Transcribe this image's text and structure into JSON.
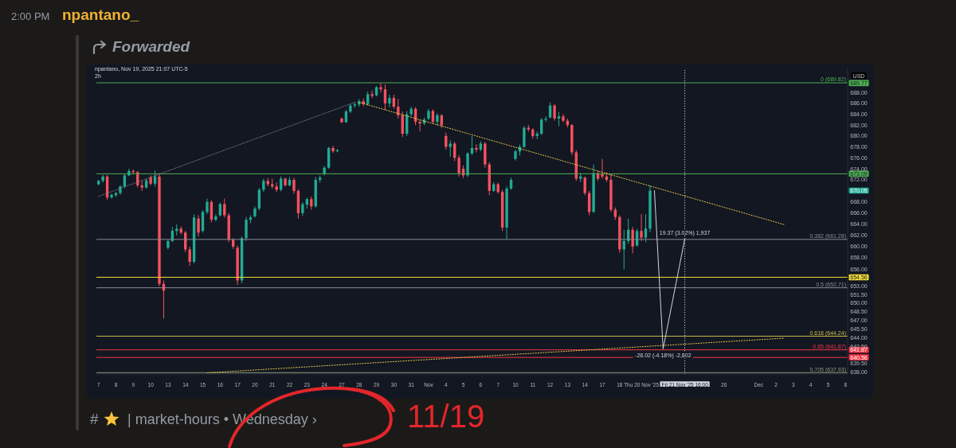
{
  "chart_data": {
    "type": "candlestick",
    "title": "2h",
    "subtitle": "npantano, Nov 19, 2025 21:07 UTC-5",
    "ylabel": "USD",
    "log": true,
    "categories": [
      "7",
      null,
      null,
      null,
      "8",
      null,
      null,
      null,
      "9",
      null,
      null,
      null,
      "10",
      null,
      null,
      null,
      "13",
      null,
      null,
      null,
      "14",
      null,
      null,
      null,
      "15",
      null,
      null,
      null,
      "16",
      null,
      null,
      null,
      "17",
      null,
      null,
      null,
      "20",
      null,
      null,
      null,
      "21",
      null,
      null,
      null,
      "22",
      null,
      null,
      null,
      "23",
      null,
      null,
      null,
      "24",
      null,
      null,
      null,
      "27",
      null,
      null,
      null,
      "28",
      null,
      null,
      null,
      "29",
      null,
      null,
      null,
      "30",
      null,
      null,
      null,
      "31",
      null,
      null,
      null,
      "Nov",
      null,
      null,
      null,
      "4",
      null,
      null,
      null,
      "5",
      null,
      null,
      null,
      "6",
      null,
      null,
      null,
      "7",
      null,
      null,
      null,
      "10",
      null,
      null,
      null,
      "11",
      null,
      null,
      null,
      "12",
      null,
      null,
      null,
      "13",
      null,
      null,
      null,
      "14",
      null,
      null,
      null,
      "17",
      null,
      null,
      null,
      "18",
      null,
      null,
      null,
      null,
      "Thu 20 Nov '25",
      null,
      null,
      null,
      null,
      null,
      null,
      null,
      null,
      null,
      "Fri 21 Nov '25 16:00",
      null,
      null,
      null,
      null,
      null,
      null,
      null,
      null,
      "26",
      null,
      null,
      null,
      null,
      null,
      null,
      null,
      "Dec",
      null,
      null,
      null,
      "2",
      null,
      null,
      null,
      "3",
      null,
      null,
      null,
      "4",
      null,
      null,
      null,
      "5",
      null,
      null,
      null,
      "8"
    ],
    "ohlc": [
      [
        671.2,
        672.0,
        671.0,
        671.8
      ],
      [
        671.8,
        672.9,
        671.5,
        672.6
      ],
      [
        672.6,
        672.9,
        668.4,
        668.8
      ],
      [
        668.8,
        669.5,
        668.6,
        669.3
      ],
      [
        669.2,
        669.8,
        668.9,
        669.6
      ],
      [
        669.6,
        671.0,
        669.3,
        670.8
      ],
      [
        670.8,
        673.0,
        670.5,
        672.8
      ],
      [
        672.8,
        674.0,
        672.7,
        673.6
      ],
      [
        673.6,
        673.9,
        673.0,
        673.4
      ],
      [
        673.4,
        673.6,
        670.6,
        671.0
      ],
      [
        671.0,
        671.8,
        670.0,
        670.6
      ],
      [
        670.6,
        672.2,
        670.4,
        671.9
      ],
      [
        672.4,
        672.8,
        671.0,
        671.3
      ],
      [
        671.3,
        673.7,
        670.8,
        672.6
      ],
      [
        672.6,
        673.2,
        653.0,
        653.4
      ],
      [
        653.4,
        654.0,
        647.3,
        652.2
      ],
      [
        659.8,
        661.2,
        659.5,
        661.0
      ],
      [
        661.0,
        663.5,
        660.8,
        662.8
      ],
      [
        662.8,
        664.0,
        662.0,
        663.2
      ],
      [
        663.2,
        663.6,
        662.2,
        662.5
      ],
      [
        662.5,
        662.8,
        659.0,
        659.5
      ],
      [
        659.5,
        660.0,
        656.6,
        657.3
      ],
      [
        657.3,
        665.8,
        657.0,
        665.2
      ],
      [
        665.0,
        665.6,
        661.8,
        662.5
      ],
      [
        662.8,
        666.5,
        662.5,
        666.2
      ],
      [
        666.2,
        668.6,
        665.8,
        668.0
      ],
      [
        668.0,
        668.3,
        664.3,
        664.8
      ],
      [
        664.8,
        665.8,
        664.5,
        665.4
      ],
      [
        665.6,
        667.9,
        665.4,
        667.6
      ],
      [
        667.6,
        668.6,
        665.2,
        665.6
      ],
      [
        665.6,
        666.0,
        660.8,
        661.2
      ],
      [
        661.2,
        661.5,
        659.6,
        660.0
      ],
      [
        659.8,
        660.2,
        653.2,
        654.0
      ],
      [
        654.0,
        661.8,
        653.5,
        661.5
      ],
      [
        661.5,
        665.3,
        661.0,
        664.8
      ],
      [
        664.8,
        665.6,
        664.2,
        665.2
      ],
      [
        665.4,
        667.2,
        665.2,
        666.8
      ],
      [
        666.8,
        670.5,
        666.5,
        670.2
      ],
      [
        670.2,
        672.2,
        669.8,
        671.8
      ],
      [
        671.8,
        672.3,
        670.8,
        671.2
      ],
      [
        671.2,
        672.2,
        670.4,
        670.8
      ],
      [
        670.8,
        671.5,
        669.8,
        670.2
      ],
      [
        670.2,
        672.6,
        669.9,
        672.2
      ],
      [
        672.2,
        672.4,
        670.8,
        671.0
      ],
      [
        671.0,
        672.5,
        670.8,
        672.0
      ],
      [
        672.0,
        672.4,
        669.5,
        670.0
      ],
      [
        670.0,
        670.3,
        665.0,
        666.0
      ],
      [
        666.0,
        668.0,
        665.5,
        667.6
      ],
      [
        667.5,
        668.8,
        666.8,
        668.5
      ],
      [
        668.5,
        669.0,
        666.6,
        667.2
      ],
      [
        667.2,
        672.5,
        667.0,
        672.0
      ],
      [
        672.0,
        672.8,
        671.5,
        672.4
      ],
      [
        673.0,
        674.5,
        672.8,
        674.2
      ],
      [
        674.2,
        678.0,
        674.0,
        677.8
      ],
      [
        677.8,
        678.2,
        676.9,
        677.2
      ],
      [
        677.2,
        677.6,
        677.0,
        677.4
      ],
      [
        683.2,
        683.4,
        682.4,
        682.5
      ],
      [
        682.5,
        684.8,
        682.4,
        684.5
      ],
      [
        684.5,
        686.0,
        684.2,
        685.6
      ],
      [
        685.6,
        686.3,
        685.2,
        685.8
      ],
      [
        685.8,
        686.8,
        685.4,
        686.4
      ],
      [
        686.4,
        686.9,
        685.5,
        685.9
      ],
      [
        685.9,
        688.2,
        685.6,
        687.7
      ],
      [
        687.7,
        688.4,
        687.0,
        687.4
      ],
      [
        687.5,
        689.2,
        687.3,
        689.0
      ],
      [
        689.0,
        689.7,
        688.0,
        688.6
      ],
      [
        688.6,
        689.5,
        684.8,
        686.0
      ],
      [
        686.0,
        687.6,
        685.3,
        687.0
      ],
      [
        687.0,
        687.6,
        685.0,
        685.4
      ],
      [
        685.4,
        686.8,
        683.2,
        683.8
      ],
      [
        683.8,
        684.5,
        679.8,
        680.4
      ],
      [
        680.4,
        684.6,
        680.0,
        684.0
      ],
      [
        684.0,
        685.4,
        683.6,
        685.0
      ],
      [
        685.0,
        685.3,
        682.0,
        682.6
      ],
      [
        682.6,
        683.0,
        680.8,
        682.3
      ],
      [
        682.3,
        683.4,
        682.0,
        683.0
      ],
      [
        683.2,
        685.0,
        682.9,
        684.6
      ],
      [
        684.6,
        684.9,
        682.2,
        682.6
      ],
      [
        682.6,
        684.2,
        682.0,
        683.8
      ],
      [
        683.8,
        684.0,
        681.5,
        682.0
      ],
      [
        680.0,
        680.6,
        677.5,
        678.0
      ],
      [
        678.0,
        679.2,
        676.2,
        678.6
      ],
      [
        678.6,
        678.9,
        675.4,
        676.0
      ],
      [
        676.0,
        676.5,
        672.6,
        673.2
      ],
      [
        674.0,
        674.6,
        672.3,
        672.8
      ],
      [
        672.8,
        677.0,
        672.5,
        676.8
      ],
      [
        676.8,
        680.0,
        676.5,
        677.8
      ],
      [
        677.8,
        678.5,
        677.0,
        677.5
      ],
      [
        677.5,
        679.0,
        677.2,
        678.6
      ],
      [
        678.6,
        678.9,
        674.2,
        674.8
      ],
      [
        674.8,
        675.2,
        669.2,
        670.0
      ],
      [
        670.0,
        671.6,
        669.8,
        671.2
      ],
      [
        671.2,
        671.5,
        669.5,
        669.8
      ],
      [
        669.8,
        670.2,
        662.8,
        663.4
      ],
      [
        663.4,
        670.8,
        661.3,
        670.4
      ],
      [
        670.4,
        672.4,
        670.2,
        672.0
      ],
      [
        675.8,
        677.5,
        675.5,
        677.2
      ],
      [
        677.2,
        678.4,
        676.4,
        678.0
      ],
      [
        678.0,
        681.8,
        677.8,
        681.5
      ],
      [
        681.5,
        682.0,
        680.8,
        681.2
      ],
      [
        681.2,
        681.4,
        679.5,
        680.0
      ],
      [
        680.0,
        680.8,
        679.4,
        680.4
      ],
      [
        680.4,
        683.3,
        680.2,
        683.0
      ],
      [
        683.0,
        683.6,
        682.6,
        683.2
      ],
      [
        683.4,
        686.2,
        683.2,
        685.6
      ],
      [
        685.6,
        685.9,
        682.8,
        683.2
      ],
      [
        683.2,
        684.4,
        681.8,
        683.6
      ],
      [
        683.6,
        684.0,
        682.5,
        682.8
      ],
      [
        682.8,
        683.2,
        681.6,
        682.0
      ],
      [
        682.0,
        682.2,
        676.5,
        677.0
      ],
      [
        677.0,
        677.4,
        671.8,
        672.2
      ],
      [
        672.2,
        673.2,
        671.6,
        672.6
      ],
      [
        672.4,
        672.6,
        669.2,
        669.6
      ],
      [
        669.6,
        670.0,
        665.6,
        666.2
      ],
      [
        666.2,
        674.8,
        666.0,
        673.2
      ],
      [
        673.2,
        673.6,
        671.8,
        672.2
      ],
      [
        673.0,
        675.8,
        672.2,
        672.6
      ],
      [
        672.6,
        673.4,
        671.6,
        672.0
      ],
      [
        672.0,
        673.0,
        666.2,
        666.6
      ],
      [
        666.6,
        667.0,
        664.8,
        665.3
      ],
      [
        665.3,
        665.6,
        658.9,
        659.5
      ],
      [
        659.5,
        663.0,
        656.0,
        661.0
      ],
      [
        661.0,
        665.0,
        660.5,
        663.0
      ],
      [
        663.0,
        663.5,
        658.8,
        660.0
      ],
      [
        660.2,
        663.2,
        660.0,
        662.8
      ],
      [
        662.8,
        665.8,
        661.0,
        661.6
      ],
      [
        661.6,
        665.8,
        660.8,
        663.2
      ],
      [
        663.2,
        671.0,
        662.6,
        670.05
      ],
      null,
      null,
      null,
      null,
      null,
      null,
      null,
      null,
      null,
      null,
      null,
      null,
      null,
      null,
      null,
      null,
      null,
      null,
      null,
      null,
      null,
      null,
      null,
      null,
      null,
      null,
      null,
      null,
      null,
      null,
      null,
      null,
      null,
      null,
      null,
      null,
      null,
      null,
      null,
      null,
      null,
      null,
      null,
      null,
      null
    ],
    "colors": [
      "#22ab94",
      "#22ab94",
      "#f7525f",
      "#22ab94",
      "#22ab94",
      "#22ab94",
      "#22ab94",
      "#22ab94",
      "#f7525f",
      "#f7525f",
      "#f7525f",
      "#22ab94",
      "#f7525f",
      "#22ab94",
      "#f7525f",
      "#f7525f",
      "#22ab94",
      "#22ab94",
      "#22ab94",
      "#f7525f",
      "#f7525f",
      "#f7525f",
      "#22ab94",
      "#f7525f",
      "#22ab94",
      "#22ab94",
      "#f7525f",
      "#22ab94",
      "#22ab94",
      "#f7525f",
      "#f7525f",
      "#f7525f",
      "#f7525f",
      "#22ab94",
      "#22ab94",
      "#22ab94",
      "#22ab94",
      "#22ab94",
      "#22ab94",
      "#f7525f",
      "#f7525f",
      "#f7525f",
      "#22ab94",
      "#f7525f",
      "#22ab94",
      "#f7525f",
      "#f7525f",
      "#22ab94",
      "#22ab94",
      "#f7525f",
      "#22ab94",
      "#22ab94",
      "#22ab94",
      "#22ab94",
      "#f7525f",
      "#22ab94",
      "#f7525f",
      "#22ab94",
      "#22ab94",
      "#22ab94",
      "#22ab94",
      "#f7525f",
      "#22ab94",
      "#f7525f",
      "#22ab94",
      "#f7525f",
      "#f7525f",
      "#22ab94",
      "#f7525f",
      "#f7525f",
      "#f7525f",
      "#22ab94",
      "#22ab94",
      "#f7525f",
      "#f7525f",
      "#22ab94",
      "#22ab94",
      "#f7525f",
      "#22ab94",
      "#f7525f",
      "#f7525f",
      "#22ab94",
      "#f7525f",
      "#f7525f",
      "#f7525f",
      "#22ab94",
      "#22ab94",
      "#f7525f",
      "#22ab94",
      "#f7525f",
      "#f7525f",
      "#22ab94",
      "#f7525f",
      "#f7525f",
      "#22ab94",
      "#22ab94",
      "#22ab94",
      "#22ab94",
      "#22ab94",
      "#f7525f",
      "#f7525f",
      "#22ab94",
      "#22ab94",
      "#22ab94",
      "#22ab94",
      "#f7525f",
      "#22ab94",
      "#f7525f",
      "#f7525f",
      "#f7525f",
      "#f7525f",
      "#22ab94",
      "#f7525f",
      "#f7525f",
      "#22ab94",
      "#f7525f",
      "#f7525f",
      "#f7525f",
      "#f7525f",
      "#f7525f",
      "#f7525f",
      "#22ab94",
      "#22ab94",
      "#f7525f",
      "#22ab94",
      "#f7525f",
      "#22ab94",
      "#22ab94",
      null,
      null,
      null,
      null,
      null,
      null,
      null,
      null,
      null,
      null,
      null,
      null,
      null,
      null,
      null,
      null,
      null,
      null,
      null,
      null,
      null,
      null,
      null,
      null,
      null,
      null,
      null,
      null,
      null,
      null,
      null,
      null,
      null,
      null,
      null,
      null,
      null,
      null,
      null,
      null,
      null,
      null,
      null,
      null,
      null
    ],
    "series": [
      {
        "type": "line",
        "color": "#787b86",
        "line_style": "dotted",
        "values": [
          669.0,
          null,
          null,
          null,
          null,
          null,
          null,
          null,
          null,
          null,
          null,
          null,
          null,
          null,
          null,
          null,
          null,
          null,
          null,
          null,
          null,
          null,
          null,
          null,
          null,
          null,
          null,
          null,
          null,
          null,
          null,
          null,
          null,
          null,
          null,
          null,
          null,
          null,
          null,
          null,
          null,
          null,
          null,
          null,
          null,
          null,
          null,
          null,
          null,
          null,
          null,
          null,
          null,
          null,
          null,
          null,
          null,
          null,
          null,
          686.2,
          null,
          null,
          null,
          null,
          null,
          null,
          null,
          null,
          null,
          null,
          null,
          null,
          null,
          null,
          null,
          null,
          null,
          null,
          null,
          null,
          null,
          null,
          null,
          null,
          null,
          null,
          null,
          null,
          null,
          null,
          null,
          null,
          null,
          null,
          null,
          null,
          null,
          null,
          null,
          null,
          null,
          null,
          null,
          null,
          null,
          null,
          null,
          null,
          null,
          null,
          null,
          null,
          null,
          null,
          null,
          null,
          null,
          null,
          null,
          null,
          null,
          null,
          null,
          null,
          null,
          null,
          null,
          null,
          null,
          null,
          null,
          null,
          null,
          null,
          null,
          null,
          null,
          null,
          null,
          null,
          null,
          null,
          null,
          null,
          null,
          null,
          null,
          null,
          null,
          null,
          null,
          null,
          null,
          null,
          null,
          null,
          null,
          null,
          null,
          null,
          null,
          null,
          null,
          null,
          null,
          null,
          null,
          null,
          null,
          null,
          null,
          null,
          null
        ]
      },
      {
        "type": "line",
        "color": "#e6c84a",
        "line_style": "dotted",
        "values": [
          null,
          null,
          null,
          null,
          null,
          null,
          null,
          null,
          null,
          null,
          null,
          null,
          null,
          null,
          null,
          null,
          null,
          null,
          null,
          null,
          null,
          null,
          null,
          null,
          null,
          null,
          null,
          null,
          null,
          null,
          null,
          null,
          null,
          null,
          null,
          null,
          null,
          null,
          null,
          null,
          null,
          null,
          null,
          null,
          null,
          null,
          null,
          null,
          null,
          null,
          null,
          null,
          null,
          null,
          null,
          null,
          null,
          null,
          null,
          null,
          686.2,
          null,
          null,
          null,
          null,
          null,
          null,
          null,
          null,
          null,
          null,
          null,
          null,
          null,
          null,
          null,
          null,
          null,
          null,
          null,
          null,
          null,
          null,
          null,
          null,
          null,
          null,
          null,
          null,
          null,
          null,
          null,
          null,
          null,
          null,
          null,
          null,
          null,
          null,
          null,
          null,
          null,
          null,
          null,
          null,
          null,
          null,
          null,
          null,
          null,
          null,
          null,
          null,
          null,
          null,
          null,
          null,
          null,
          null,
          null,
          null,
          null,
          null,
          null,
          null,
          null,
          null,
          null,
          null,
          null,
          null,
          null,
          null,
          null,
          null,
          null,
          null,
          null,
          null,
          null,
          null,
          null,
          null,
          null,
          null,
          null,
          null,
          null,
          null,
          null,
          null,
          null,
          null,
          null,
          null,
          null,
          null,
          null,
          663.9,
          null,
          null,
          null,
          null,
          null,
          null,
          null,
          null,
          null,
          null,
          null,
          null,
          null,
          null
        ]
      },
      {
        "type": "line",
        "color": "#e6c84a",
        "line_style": "dotted",
        "values": [
          null,
          null,
          null,
          null,
          null,
          null,
          null,
          null,
          null,
          null,
          null,
          null,
          null,
          null,
          null,
          null,
          null,
          null,
          null,
          null,
          null,
          null,
          null,
          null,
          null,
          637.9,
          null,
          null,
          null,
          null,
          null,
          null,
          null,
          null,
          null,
          null,
          null,
          null,
          null,
          null,
          null,
          null,
          null,
          null,
          null,
          null,
          null,
          null,
          null,
          null,
          null,
          null,
          null,
          null,
          null,
          null,
          null,
          null,
          null,
          null,
          null,
          null,
          null,
          null,
          null,
          null,
          null,
          null,
          null,
          null,
          null,
          null,
          null,
          null,
          null,
          null,
          null,
          null,
          null,
          null,
          null,
          null,
          null,
          null,
          null,
          null,
          null,
          null,
          null,
          null,
          null,
          null,
          null,
          null,
          null,
          null,
          null,
          null,
          null,
          null,
          null,
          null,
          null,
          null,
          null,
          null,
          null,
          null,
          null,
          null,
          null,
          null,
          null,
          null,
          null,
          null,
          null,
          null,
          null,
          null,
          null,
          null,
          null,
          null,
          null,
          null,
          null,
          null,
          null,
          null,
          null,
          null,
          null,
          null,
          null,
          null,
          null,
          null,
          null,
          null,
          null,
          null,
          null,
          null,
          null,
          null,
          null,
          null,
          null,
          null,
          null,
          null,
          null,
          null,
          null,
          null,
          null,
          null,
          643.9,
          null,
          null,
          null,
          null,
          null,
          null,
          null,
          null,
          null,
          null,
          null,
          null,
          null,
          null
        ]
      },
      {
        "type": "line",
        "color": "#d1d4dc",
        "line_style": "solid",
        "values": [
          null,
          null,
          null,
          null,
          null,
          null,
          null,
          null,
          null,
          null,
          null,
          null,
          null,
          null,
          null,
          null,
          null,
          null,
          null,
          null,
          null,
          null,
          null,
          null,
          null,
          null,
          null,
          null,
          null,
          null,
          null,
          null,
          null,
          null,
          null,
          null,
          null,
          null,
          null,
          null,
          null,
          null,
          null,
          null,
          null,
          null,
          null,
          null,
          null,
          null,
          null,
          null,
          null,
          null,
          null,
          null,
          null,
          null,
          null,
          null,
          null,
          null,
          null,
          null,
          null,
          null,
          null,
          null,
          null,
          null,
          null,
          null,
          null,
          null,
          null,
          null,
          null,
          null,
          null,
          null,
          null,
          null,
          null,
          null,
          null,
          null,
          null,
          null,
          null,
          null,
          null,
          null,
          null,
          null,
          null,
          null,
          null,
          null,
          null,
          null,
          null,
          null,
          null,
          null,
          null,
          null,
          null,
          null,
          null,
          null,
          null,
          null,
          null,
          null,
          null,
          null,
          null,
          null,
          null,
          null,
          null,
          null,
          null,
          null,
          null,
          null,
          null,
          null,
          670.05,
          null,
          642.03,
          null,
          null,
          null,
          null,
          661.4,
          null,
          null,
          null,
          null,
          null,
          null,
          null,
          null,
          null,
          null,
          null,
          null,
          null,
          null,
          null,
          null,
          null,
          null,
          null,
          null,
          null,
          null,
          null,
          null,
          null,
          null,
          null,
          null,
          null,
          null,
          null,
          null,
          null,
          null,
          null,
          null,
          null
        ]
      }
    ],
    "ylim": [
      637.7,
      692.5
    ],
    "yticks": [
      {
        "value": 689.77,
        "label": "689.77"
      },
      {
        "value": 688,
        "label": "688.00"
      },
      {
        "value": 686,
        "label": "686.00"
      },
      {
        "value": 684,
        "label": "684.00"
      },
      {
        "value": 682,
        "label": "682.00"
      },
      {
        "value": 680,
        "label": "680.00"
      },
      {
        "value": 678,
        "label": "678.00"
      },
      {
        "value": 676,
        "label": "676.00"
      },
      {
        "value": 674,
        "label": "674.00"
      },
      {
        "value": 673.09,
        "label": "673.09"
      },
      {
        "value": 672,
        "label": "672.00"
      },
      {
        "value": 670.05,
        "label": "670.05"
      },
      {
        "value": 668,
        "label": "668.00"
      },
      {
        "value": 666,
        "label": "666.00"
      },
      {
        "value": 664,
        "label": "664.00"
      },
      {
        "value": 662,
        "label": "662.00"
      },
      {
        "value": 660,
        "label": "660.00"
      },
      {
        "value": 658,
        "label": "658.00"
      },
      {
        "value": 656,
        "label": "656.00"
      },
      {
        "value": 654.56,
        "label": "654.56"
      },
      {
        "value": 653,
        "label": "653.00"
      },
      {
        "value": 651.5,
        "label": "651.50"
      },
      {
        "value": 650,
        "label": "650.00"
      },
      {
        "value": 648.5,
        "label": "648.50"
      },
      {
        "value": 647,
        "label": "647.00"
      },
      {
        "value": 645.5,
        "label": "645.50"
      },
      {
        "value": 644,
        "label": "644.00"
      },
      {
        "value": 642.5,
        "label": "642.50"
      },
      {
        "value": 641.87,
        "label": "641.87"
      },
      {
        "value": 640.56,
        "label": "640.56"
      },
      {
        "value": 639.5,
        "label": "639.50"
      },
      {
        "value": 638,
        "label": "638.00"
      }
    ],
    "ref_lines": [
      {
        "axis": "y",
        "value": 689.82,
        "label": "0 (689.82)",
        "color": "#4caf50"
      },
      {
        "axis": "y",
        "value": 673.09,
        "color": "#4caf50"
      },
      {
        "axis": "y",
        "value": 654.56,
        "color": "#f2de3a"
      },
      {
        "axis": "y",
        "value": 641.87,
        "label": "0.65 (641.87)",
        "color": "#f23645"
      },
      {
        "axis": "y",
        "value": 640.56,
        "color": "#f23645"
      },
      {
        "axis": "y",
        "value": 661.28,
        "label": "0.382 (661.28)",
        "color": "#8a8d96"
      },
      {
        "axis": "y",
        "value": 652.71,
        "label": "0.5 (652.71)",
        "color": "#8a8d96"
      },
      {
        "axis": "y",
        "value": 644.24,
        "label": "0.618 (644.24)",
        "color": "#c9b84a"
      },
      {
        "axis": "y",
        "value": 637.93,
        "label": "0.705 (637.93)",
        "color": "#8a9a7a"
      },
      {
        "axis": "x",
        "value": "Fri 21 Nov '25 16:00",
        "color": "#d1d4dc",
        "line_style": "dotted"
      }
    ],
    "annotations": [
      "2:00 PM",
      "npantano_",
      "Forwarded",
      "#",
      "| market-hours • Wednesday ›",
      "11/19",
      {
        "text": "-28.02 (-4.18%) -2,802",
        "y": 642.03
      },
      {
        "text": "19.37 (3.02%) 1,937",
        "x": "Fri 21 Nov '25 16:00",
        "y": 661.4
      }
    ]
  }
}
